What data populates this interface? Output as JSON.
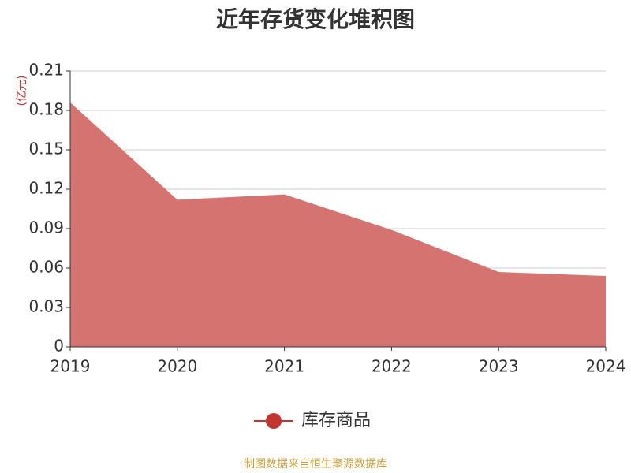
{
  "chart_data": {
    "type": "area",
    "title": "近年存货变化堆积图",
    "y_label": "(亿元)",
    "categories": [
      "2019",
      "2020",
      "2021",
      "2022",
      "2023",
      "2024"
    ],
    "series": [
      {
        "name": "库存商品",
        "color": "#c23531",
        "fill": "#d4736f",
        "values": [
          0.186,
          0.112,
          0.116,
          0.089,
          0.057,
          0.054
        ]
      }
    ],
    "ylim": [
      0,
      0.21
    ],
    "yticks": [
      0,
      0.03,
      0.06,
      0.09,
      0.12,
      0.15,
      0.18,
      0.21
    ],
    "grid": true,
    "source": "制图数据来自恒生聚源数据库"
  }
}
